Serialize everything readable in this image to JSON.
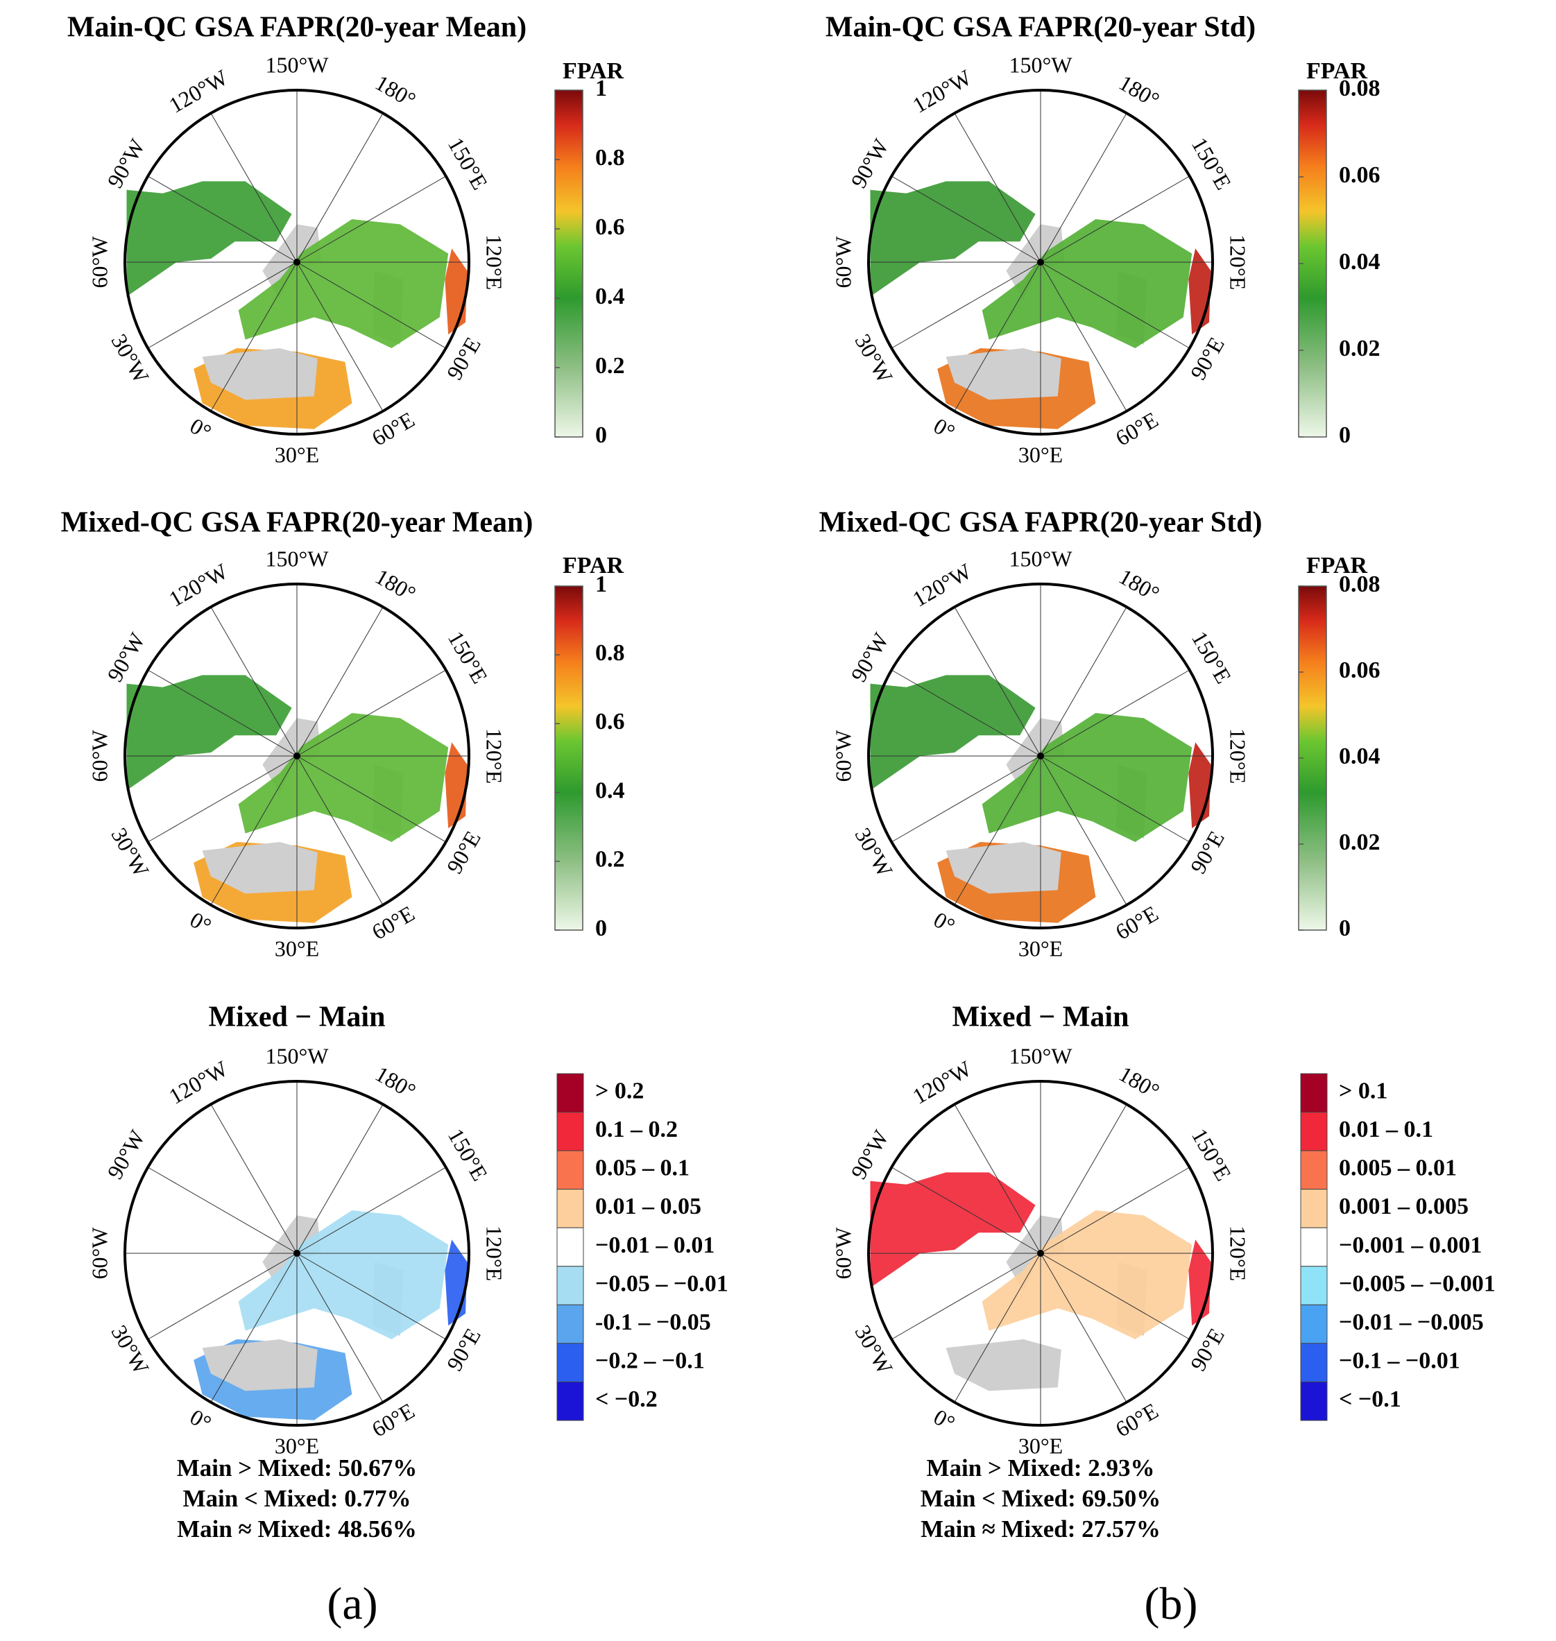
{
  "figure": {
    "panel_labels": [
      "(a)",
      "(b)"
    ],
    "land_color": "#cfcfcf",
    "frame_color": "#000000"
  },
  "chart_data": [
    {
      "id": "main_mean",
      "type": "heatmap",
      "projection": "north-polar-stereographic",
      "title": "Main-QC GSA FAPR(20-year Mean)",
      "lon_labels": [
        "150°W",
        "180°",
        "150°E",
        "120°E",
        "90°E",
        "60°E",
        "30°E",
        "0°",
        "30°W",
        "60°W",
        "90°W",
        "120°W"
      ],
      "colorbar": {
        "kind": "continuous",
        "title": "FPAR",
        "min": 0,
        "max": 1,
        "ticks": [
          "0",
          "0.2",
          "0.4",
          "0.6",
          "0.8",
          "1"
        ],
        "colormap": "green-yellow-red"
      }
    },
    {
      "id": "main_std",
      "type": "heatmap",
      "projection": "north-polar-stereographic",
      "title": "Main-QC GSA FAPR(20-year Std)",
      "lon_labels": [
        "150°W",
        "180°",
        "150°E",
        "120°E",
        "90°E",
        "60°E",
        "30°E",
        "0°",
        "30°W",
        "60°W",
        "90°W",
        "120°W"
      ],
      "colorbar": {
        "kind": "continuous",
        "title": "FPAR",
        "min": 0,
        "max": 0.08,
        "ticks": [
          "0",
          "0.02",
          "0.04",
          "0.06",
          "0.08"
        ],
        "colormap": "green-yellow-red"
      }
    },
    {
      "id": "mixed_mean",
      "type": "heatmap",
      "projection": "north-polar-stereographic",
      "title": "Mixed-QC GSA FAPR(20-year Mean)",
      "lon_labels": [
        "150°W",
        "180°",
        "150°E",
        "120°E",
        "90°E",
        "60°E",
        "30°E",
        "0°",
        "30°W",
        "60°W",
        "90°W",
        "120°W"
      ],
      "colorbar": {
        "kind": "continuous",
        "title": "FPAR",
        "min": 0,
        "max": 1,
        "ticks": [
          "0",
          "0.2",
          "0.4",
          "0.6",
          "0.8",
          "1"
        ],
        "colormap": "green-yellow-red"
      }
    },
    {
      "id": "mixed_std",
      "type": "heatmap",
      "projection": "north-polar-stereographic",
      "title": "Mixed-QC GSA FAPR(20-year Std)",
      "lon_labels": [
        "150°W",
        "180°",
        "150°E",
        "120°E",
        "90°E",
        "60°E",
        "30°E",
        "0°",
        "30°W",
        "60°W",
        "90°W",
        "120°W"
      ],
      "colorbar": {
        "kind": "continuous",
        "title": "FPAR",
        "min": 0,
        "max": 0.08,
        "ticks": [
          "0",
          "0.02",
          "0.04",
          "0.06",
          "0.08"
        ],
        "colormap": "green-yellow-red"
      }
    },
    {
      "id": "diff_mean",
      "type": "heatmap",
      "projection": "north-polar-stereographic",
      "title": "Mixed − Main",
      "lon_labels": [
        "150°W",
        "180°",
        "150°E",
        "120°E",
        "90°E",
        "60°E",
        "30°E",
        "0°",
        "30°W",
        "60°W",
        "90°W",
        "120°W"
      ],
      "colorbar": {
        "kind": "categorical",
        "classes": [
          {
            "label": "> 0.2",
            "color": "#a50026"
          },
          {
            "label": "0.1 – 0.2",
            "color": "#f0283a"
          },
          {
            "label": "0.05 – 0.1",
            "color": "#f9734e"
          },
          {
            "label": "0.01 – 0.05",
            "color": "#fdcf9c"
          },
          {
            "label": "−0.01 – 0.01",
            "color": "#ffffff"
          },
          {
            "label": "−0.05 – −0.01",
            "color": "#a6ddf3"
          },
          {
            "label": "-0.1 – −0.05",
            "color": "#5aa5ee"
          },
          {
            "label": "−0.2 – −0.1",
            "color": "#2a5ff0"
          },
          {
            "label": "< −0.2",
            "color": "#1b14d6"
          }
        ]
      },
      "stats": [
        {
          "label": "Main > Mixed: 50.67%",
          "percent": 50.67
        },
        {
          "label": "Main < Mixed: 0.77%",
          "percent": 0.77
        },
        {
          "label": "Main ≈ Mixed: 48.56%",
          "percent": 48.56
        }
      ]
    },
    {
      "id": "diff_std",
      "type": "heatmap",
      "projection": "north-polar-stereographic",
      "title": "Mixed − Main",
      "lon_labels": [
        "150°W",
        "180°",
        "150°E",
        "120°E",
        "90°E",
        "60°E",
        "30°E",
        "0°",
        "30°W",
        "60°W",
        "90°W",
        "120°W"
      ],
      "colorbar": {
        "kind": "categorical",
        "classes": [
          {
            "label": "> 0.1",
            "color": "#a50026"
          },
          {
            "label": "0.01 – 0.1",
            "color": "#f0283a"
          },
          {
            "label": "0.005 – 0.01",
            "color": "#f9734e"
          },
          {
            "label": "0.001 – 0.005",
            "color": "#fdcf9c"
          },
          {
            "label": "−0.001 – 0.001",
            "color": "#ffffff"
          },
          {
            "label": "−0.005 – −0.001",
            "color": "#8fe3f8"
          },
          {
            "label": "−0.01 – −0.005",
            "color": "#4aa3f2"
          },
          {
            "label": "−0.1 – −0.01",
            "color": "#2a5ff0"
          },
          {
            "label": "< −0.1",
            "color": "#1b14d6"
          }
        ]
      },
      "stats": [
        {
          "label": "Main > Mixed: 2.93%",
          "percent": 2.93
        },
        {
          "label": "Main < Mixed: 69.50%",
          "percent": 69.5
        },
        {
          "label": "Main ≈ Mixed: 27.57%",
          "percent": 27.57
        }
      ]
    }
  ]
}
